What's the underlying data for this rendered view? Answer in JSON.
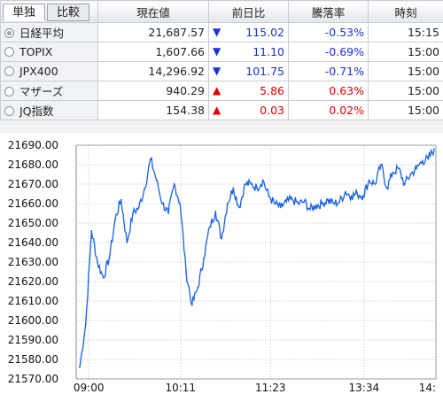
{
  "tabs": [
    {
      "label": "単独",
      "active": true
    },
    {
      "label": "比較",
      "active": false
    }
  ],
  "columns": {
    "current": "現在値",
    "change": "前日比",
    "pct": "騰落率",
    "time": "時刻"
  },
  "rows": [
    {
      "name": "日経平均",
      "selected": true,
      "price": "21,687.57",
      "arrow": "▼",
      "direction": "down",
      "change": "115.02",
      "pct": "-0.53%",
      "time": "15:15"
    },
    {
      "name": "TOPIX",
      "selected": false,
      "price": "1,607.66",
      "arrow": "▼",
      "direction": "down",
      "change": "11.10",
      "pct": "-0.69%",
      "time": "15:00"
    },
    {
      "name": "JPX400",
      "selected": false,
      "price": "14,296.92",
      "arrow": "▼",
      "direction": "down",
      "change": "101.75",
      "pct": "-0.71%",
      "time": "15:00"
    },
    {
      "name": "マザーズ",
      "selected": false,
      "price": "940.29",
      "arrow": "▲",
      "direction": "up",
      "change": "5.86",
      "pct": "0.63%",
      "time": "15:00"
    },
    {
      "name": "JQ指数",
      "selected": false,
      "price": "154.38",
      "arrow": "▲",
      "direction": "up",
      "change": "0.03",
      "pct": "0.02%",
      "time": "15:00"
    }
  ],
  "colors": {
    "down": "#1a30d8",
    "up": "#e00000",
    "line": "#1560e6",
    "grid": "#c0c0c0"
  },
  "chart_data": {
    "type": "line",
    "ylim": [
      21570,
      21690
    ],
    "yticks": [
      21690,
      21680,
      21670,
      21660,
      21650,
      21640,
      21630,
      21620,
      21610,
      21600,
      21590,
      21580,
      21570
    ],
    "ytick_labels": [
      "21690.00",
      "21680.00",
      "21670.00",
      "21660.00",
      "21650.00",
      "21640.00",
      "21630.00",
      "21620.00",
      "21610.00",
      "21600.00",
      "21590.00",
      "21580.00",
      "21570.00"
    ],
    "xticks": [
      "09:00",
      "10:11",
      "11:23",
      "13:34",
      "14:"
    ],
    "grid": true,
    "x": [
      "09:00",
      "09:05",
      "09:10",
      "09:15",
      "09:20",
      "09:25",
      "09:30",
      "09:35",
      "09:40",
      "09:45",
      "09:50",
      "09:55",
      "10:00",
      "10:05",
      "10:11",
      "10:15",
      "10:20",
      "10:25",
      "10:30",
      "10:35",
      "10:40",
      "10:45",
      "10:50",
      "10:55",
      "11:00",
      "11:05",
      "11:10",
      "11:15",
      "11:23",
      "11:25",
      "11:30",
      "12:30",
      "12:35",
      "12:40",
      "12:45",
      "12:50",
      "12:55",
      "13:00",
      "13:05",
      "13:10",
      "13:15",
      "13:20",
      "13:25",
      "13:34",
      "13:40",
      "13:45",
      "13:50",
      "13:55",
      "14:00",
      "14:05",
      "14:10",
      "14:15",
      "14:20",
      "14:25",
      "14:30",
      "14:35",
      "14:40",
      "14:45",
      "14:50",
      "14:55",
      "15:00"
    ],
    "series": [
      {
        "values": [
          21576,
          21598,
          21646,
          21630,
          21622,
          21632,
          21652,
          21662,
          21640,
          21655,
          21658,
          21668,
          21683,
          21672,
          21660,
          21655,
          21670,
          21660,
          21625,
          21608,
          21617,
          21632,
          21648,
          21656,
          21642,
          21660,
          21668,
          21658,
          21670,
          21670,
          21668,
          21672,
          21664,
          21660,
          21658,
          21661,
          21662,
          21660,
          21661,
          21657,
          21659,
          21660,
          21662,
          21660,
          21661,
          21666,
          21664,
          21665,
          21664,
          21672,
          21670,
          21680,
          21668,
          21676,
          21678,
          21670,
          21675,
          21678,
          21682,
          21683,
          21688
        ]
      }
    ]
  }
}
